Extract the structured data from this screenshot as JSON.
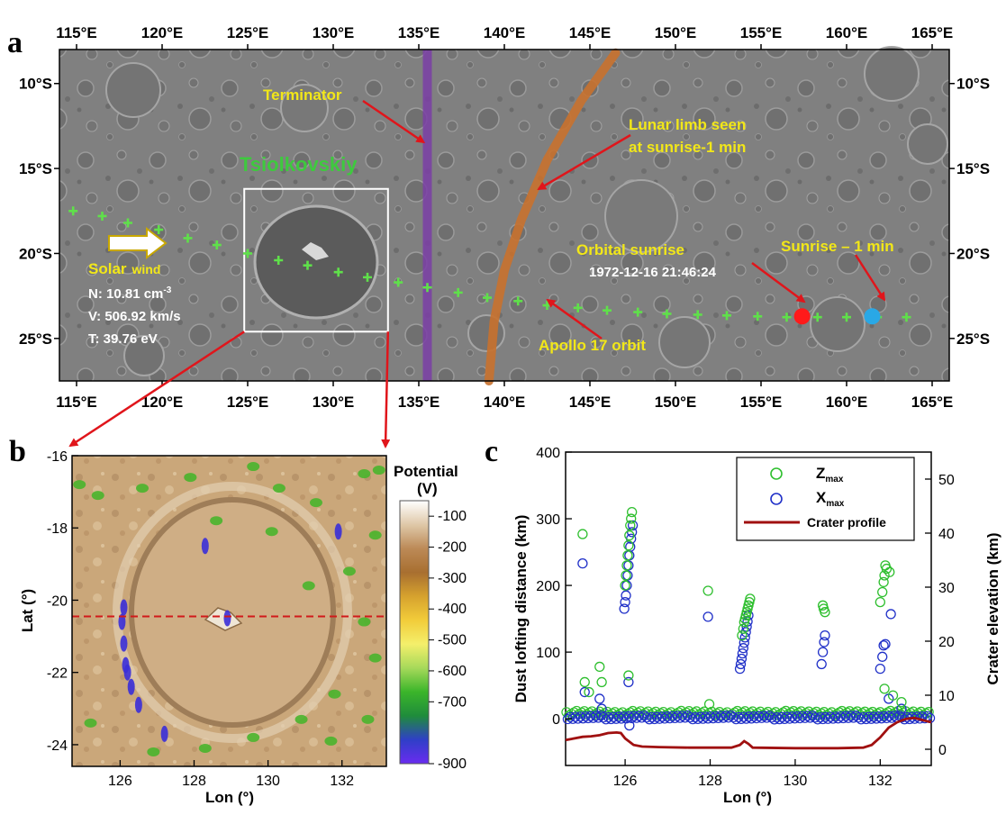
{
  "panel_labels": {
    "a": "a",
    "b": "b",
    "c": "c"
  },
  "colors": {
    "annotation_yellow": "#f2e718",
    "terminator": "#7b3fa6",
    "limb": "#c8712e",
    "orbit": "#5fe04a",
    "arrow": "#e0151b",
    "sunrise": "#ff1a1a",
    "sunrise_minus_1": "#29a8e6",
    "zmax": "#2fbf2f",
    "xmax": "#2030c8",
    "crater_profile": "#a01010",
    "tsiolkovskiy_label": "#3ec93e"
  },
  "chart_data": [
    {
      "type": "scatter",
      "panel": "a",
      "description_type": "map",
      "x_ticks": [
        "115°E",
        "120°E",
        "125°E",
        "130°E",
        "135°E",
        "140°E",
        "145°E",
        "150°E",
        "155°E",
        "160°E",
        "165°E"
      ],
      "y_ticks": [
        "10°S",
        "15°S",
        "20°S",
        "25°S"
      ],
      "xlim": [
        114,
        166
      ],
      "ylim": [
        -27.5,
        -8
      ],
      "terminator_lon": 135.5,
      "limb_curve": [
        [
          146.5,
          -8.2
        ],
        [
          144.5,
          -11
        ],
        [
          142.5,
          -14.5
        ],
        [
          141,
          -18
        ],
        [
          140,
          -21
        ],
        [
          139.4,
          -24
        ],
        [
          139.1,
          -27.5
        ]
      ],
      "orbit_points": [
        [
          114.8,
          -17.5
        ],
        [
          116.5,
          -17.8
        ],
        [
          118,
          -18.2
        ],
        [
          119.8,
          -18.6
        ],
        [
          121.5,
          -19.1
        ],
        [
          123.2,
          -19.5
        ],
        [
          125,
          -20
        ],
        [
          126.8,
          -20.4
        ],
        [
          128.5,
          -20.7
        ],
        [
          130.3,
          -21.1
        ],
        [
          132,
          -21.4
        ],
        [
          133.8,
          -21.7
        ],
        [
          135.5,
          -22
        ],
        [
          137.3,
          -22.3
        ],
        [
          139,
          -22.6
        ],
        [
          140.8,
          -22.8
        ],
        [
          142.5,
          -23.05
        ],
        [
          144.3,
          -23.2
        ],
        [
          146,
          -23.35
        ],
        [
          147.8,
          -23.45
        ],
        [
          149.5,
          -23.55
        ],
        [
          151.3,
          -23.6
        ],
        [
          153,
          -23.65
        ],
        [
          154.8,
          -23.7
        ],
        [
          156.5,
          -23.75
        ],
        [
          158.3,
          -23.75
        ],
        [
          160,
          -23.75
        ],
        [
          161.8,
          -23.75
        ],
        [
          163.5,
          -23.75
        ]
      ],
      "sunrise_point": [
        157.4,
        -23.7
      ],
      "sunrise_minus_1_point": [
        161.5,
        -23.7
      ],
      "box": {
        "lon": [
          124.8,
          133.2
        ],
        "lat": [
          -16.2,
          -24.6
        ]
      },
      "annotations": {
        "terminator": "Terminator",
        "limb_1": "Lunar limb seen",
        "limb_2": "at sunrise-1 min",
        "tsiolkovskiy": "Tsiolkovskiy",
        "orbital_sunrise": "Orbital sunrise",
        "sunrise_time": "1972-12-16 21:46:24",
        "sunrise_minus_1": "Sunrise – 1 min",
        "apollo_orbit": "Apollo 17 orbit",
        "solar_wind_1": "Solar",
        "solar_wind_2": "wind",
        "N_prefix": "N: 10.81 cm",
        "N_sup": "-3",
        "V": "V: 506.92 km/s",
        "T": "T: 39.76 eV"
      }
    },
    {
      "type": "heatmap",
      "panel": "b",
      "xlabel": "Lon (°)",
      "ylabel": "Lat (°)",
      "xlim": [
        124.7,
        133.2
      ],
      "ylim": [
        -24.6,
        -16
      ],
      "x_ticks": [
        126,
        128,
        130,
        132
      ],
      "y_ticks": [
        -16,
        -18,
        -20,
        -22,
        -24
      ],
      "profile_lat": -20.45,
      "colorbar": {
        "title_1": "Potential",
        "title_2": "(V)",
        "range": [
          -900,
          -50
        ],
        "ticks": [
          -100,
          -200,
          -300,
          -400,
          -500,
          -600,
          -700,
          -900
        ],
        "stops": [
          "#ffffff",
          "#dfc8a8",
          "#bc8a57",
          "#a86f30",
          "#d6a22e",
          "#f2cc3a",
          "#f4ef6b",
          "#a6d95a",
          "#3bb52a",
          "#1f8c3b",
          "#2f3fc7",
          "#6a2cf0"
        ]
      }
    },
    {
      "type": "scatter",
      "panel": "c",
      "xlabel": "Lon (°)",
      "ylabel": "Dust lofting distance (km)",
      "y2label": "Crater elevation (km)",
      "xlim": [
        124.6,
        133.2
      ],
      "ylim": [
        -70,
        400
      ],
      "y2lim": [
        -3,
        55
      ],
      "x_ticks": [
        126,
        128,
        130,
        132
      ],
      "y_ticks": [
        0,
        100,
        200,
        300,
        400
      ],
      "y2_ticks": [
        0,
        10,
        20,
        30,
        40,
        50
      ],
      "legend_placement": "top-right",
      "series": [
        {
          "name": "Z",
          "name_sub": "max",
          "marker": "open-circle",
          "baseline_y": 8,
          "points": [
            [
              125,
              277
            ],
            [
              125.05,
              55
            ],
            [
              125.15,
              40
            ],
            [
              125.4,
              78
            ],
            [
              125.45,
              55
            ],
            [
              126,
              200
            ],
            [
              126.02,
              215
            ],
            [
              126.04,
              230
            ],
            [
              126.06,
              245
            ],
            [
              126.08,
              260
            ],
            [
              126.1,
              275
            ],
            [
              126.12,
              290
            ],
            [
              126.14,
              300
            ],
            [
              126.16,
              310
            ],
            [
              126.08,
              65
            ],
            [
              127.95,
              192
            ],
            [
              127.98,
              22
            ],
            [
              128.75,
              125
            ],
            [
              128.78,
              135
            ],
            [
              128.8,
              145
            ],
            [
              128.82,
              150
            ],
            [
              128.84,
              155
            ],
            [
              128.86,
              160
            ],
            [
              128.88,
              165
            ],
            [
              128.9,
              170
            ],
            [
              128.92,
              175
            ],
            [
              128.94,
              180
            ],
            [
              130.65,
              170
            ],
            [
              130.67,
              165
            ],
            [
              130.7,
              160
            ],
            [
              132,
              175
            ],
            [
              132.05,
              190
            ],
            [
              132.08,
              205
            ],
            [
              132.1,
              215
            ],
            [
              132.12,
              230
            ],
            [
              132.15,
              225
            ],
            [
              132.22,
              220
            ],
            [
              132.1,
              45
            ],
            [
              132.3,
              35
            ],
            [
              132.5,
              25
            ]
          ]
        },
        {
          "name": "X",
          "name_sub": "max",
          "marker": "open-circle",
          "baseline_y": 2,
          "points": [
            [
              125,
              233
            ],
            [
              125.05,
              40
            ],
            [
              125.4,
              30
            ],
            [
              125.45,
              15
            ],
            [
              125.98,
              165
            ],
            [
              126,
              175
            ],
            [
              126.02,
              185
            ],
            [
              126.04,
              200
            ],
            [
              126.06,
              215
            ],
            [
              126.08,
              230
            ],
            [
              126.1,
              245
            ],
            [
              126.12,
              258
            ],
            [
              126.14,
              270
            ],
            [
              126.16,
              280
            ],
            [
              126.18,
              290
            ],
            [
              126.08,
              55
            ],
            [
              126.1,
              -10
            ],
            [
              127.95,
              153
            ],
            [
              128.7,
              75
            ],
            [
              128.72,
              82
            ],
            [
              128.74,
              90
            ],
            [
              128.76,
              98
            ],
            [
              128.78,
              106
            ],
            [
              128.8,
              114
            ],
            [
              128.82,
              122
            ],
            [
              128.84,
              130
            ],
            [
              128.86,
              138
            ],
            [
              128.88,
              146
            ],
            [
              128.9,
              155
            ],
            [
              130.62,
              82
            ],
            [
              130.65,
              100
            ],
            [
              130.68,
              115
            ],
            [
              130.7,
              125
            ],
            [
              132,
              75
            ],
            [
              132.05,
              93
            ],
            [
              132.08,
              110
            ],
            [
              132.12,
              112
            ],
            [
              132.25,
              157
            ],
            [
              132.2,
              30
            ],
            [
              132.5,
              15
            ]
          ]
        },
        {
          "name": "Crater profile",
          "marker": "line",
          "axis": "right",
          "points": [
            [
              124.6,
              1.7
            ],
            [
              124.8,
              2.0
            ],
            [
              125.0,
              2.3
            ],
            [
              125.2,
              2.4
            ],
            [
              125.4,
              2.6
            ],
            [
              125.6,
              3.0
            ],
            [
              125.8,
              3.1
            ],
            [
              125.9,
              3.0
            ],
            [
              126.0,
              2.0
            ],
            [
              126.2,
              0.8
            ],
            [
              126.4,
              0.5
            ],
            [
              126.8,
              0.4
            ],
            [
              127.5,
              0.3
            ],
            [
              128.5,
              0.3
            ],
            [
              128.7,
              0.8
            ],
            [
              128.8,
              1.5
            ],
            [
              128.9,
              1.0
            ],
            [
              129.0,
              0.3
            ],
            [
              130.0,
              0.2
            ],
            [
              131.0,
              0.2
            ],
            [
              131.6,
              0.3
            ],
            [
              131.8,
              0.8
            ],
            [
              132.0,
              2.2
            ],
            [
              132.2,
              4.0
            ],
            [
              132.4,
              5.0
            ],
            [
              132.6,
              5.6
            ],
            [
              132.8,
              5.8
            ],
            [
              133.0,
              5.4
            ],
            [
              133.2,
              5.0
            ]
          ]
        }
      ]
    }
  ]
}
